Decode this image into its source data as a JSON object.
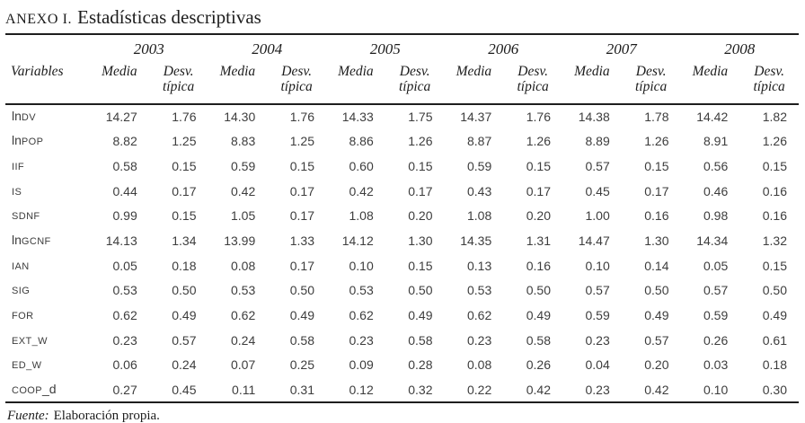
{
  "title": {
    "annex": "ANEXO I.",
    "text": "Estadísticas descriptivas"
  },
  "header": {
    "variables_label": "Variables",
    "years": [
      "2003",
      "2004",
      "2005",
      "2006",
      "2007",
      "2008"
    ],
    "media_label": "Media",
    "desv_line1": "Desv.",
    "desv_line2": "típica"
  },
  "rows": [
    {
      "label": {
        "pre": "ln",
        "caps": "DV",
        "post": ""
      },
      "values": [
        "14.27",
        "1.76",
        "14.30",
        "1.76",
        "14.33",
        "1.75",
        "14.37",
        "1.76",
        "14.38",
        "1.78",
        "14.42",
        "1.82"
      ]
    },
    {
      "label": {
        "pre": "ln",
        "caps": "POP",
        "post": ""
      },
      "values": [
        "8.82",
        "1.25",
        "8.83",
        "1.25",
        "8.86",
        "1.26",
        "8.87",
        "1.26",
        "8.89",
        "1.26",
        "8.91",
        "1.26"
      ]
    },
    {
      "label": {
        "pre": "",
        "caps": "IIF",
        "post": ""
      },
      "values": [
        "0.58",
        "0.15",
        "0.59",
        "0.15",
        "0.60",
        "0.15",
        "0.59",
        "0.15",
        "0.57",
        "0.15",
        "0.56",
        "0.15"
      ]
    },
    {
      "label": {
        "pre": "",
        "caps": "IS",
        "post": ""
      },
      "values": [
        "0.44",
        "0.17",
        "0.42",
        "0.17",
        "0.42",
        "0.17",
        "0.43",
        "0.17",
        "0.45",
        "0.17",
        "0.46",
        "0.16"
      ]
    },
    {
      "label": {
        "pre": "",
        "caps": "SDNF",
        "post": ""
      },
      "values": [
        "0.99",
        "0.15",
        "1.05",
        "0.17",
        "1.08",
        "0.20",
        "1.08",
        "0.20",
        "1.00",
        "0.16",
        "0.98",
        "0.16"
      ]
    },
    {
      "label": {
        "pre": "ln",
        "caps": "GCNF",
        "post": ""
      },
      "values": [
        "14.13",
        "1.34",
        "13.99",
        "1.33",
        "14.12",
        "1.30",
        "14.35",
        "1.31",
        "14.47",
        "1.30",
        "14.34",
        "1.32"
      ]
    },
    {
      "label": {
        "pre": "",
        "caps": "IAN",
        "post": ""
      },
      "values": [
        "0.05",
        "0.18",
        "0.08",
        "0.17",
        "0.10",
        "0.15",
        "0.13",
        "0.16",
        "0.10",
        "0.14",
        "0.05",
        "0.15"
      ]
    },
    {
      "label": {
        "pre": "",
        "caps": "SIG",
        "post": ""
      },
      "values": [
        "0.53",
        "0.50",
        "0.53",
        "0.50",
        "0.53",
        "0.50",
        "0.53",
        "0.50",
        "0.57",
        "0.50",
        "0.57",
        "0.50"
      ]
    },
    {
      "label": {
        "pre": "",
        "caps": "FOR",
        "post": ""
      },
      "values": [
        "0.62",
        "0.49",
        "0.62",
        "0.49",
        "0.62",
        "0.49",
        "0.62",
        "0.49",
        "0.59",
        "0.49",
        "0.59",
        "0.49"
      ]
    },
    {
      "label": {
        "pre": "",
        "caps": "EXT_W",
        "post": ""
      },
      "values": [
        "0.23",
        "0.57",
        "0.24",
        "0.58",
        "0.23",
        "0.58",
        "0.23",
        "0.58",
        "0.23",
        "0.57",
        "0.26",
        "0.61"
      ]
    },
    {
      "label": {
        "pre": "",
        "caps": "ED_W",
        "post": ""
      },
      "values": [
        "0.06",
        "0.24",
        "0.07",
        "0.25",
        "0.09",
        "0.28",
        "0.08",
        "0.26",
        "0.04",
        "0.20",
        "0.03",
        "0.18"
      ]
    },
    {
      "label": {
        "pre": "",
        "caps": "COOP",
        "post": "_d"
      },
      "values": [
        "0.27",
        "0.45",
        "0.11",
        "0.31",
        "0.12",
        "0.32",
        "0.22",
        "0.42",
        "0.23",
        "0.42",
        "0.10",
        "0.30"
      ]
    }
  ],
  "footer": {
    "source_label": "Fuente:",
    "source_text": "Elaboración propia."
  },
  "colors": {
    "rule": "#1e1e1e",
    "heading_text": "#1c1c1c",
    "data_text": "#3d3d3d",
    "background": "#ffffff"
  }
}
